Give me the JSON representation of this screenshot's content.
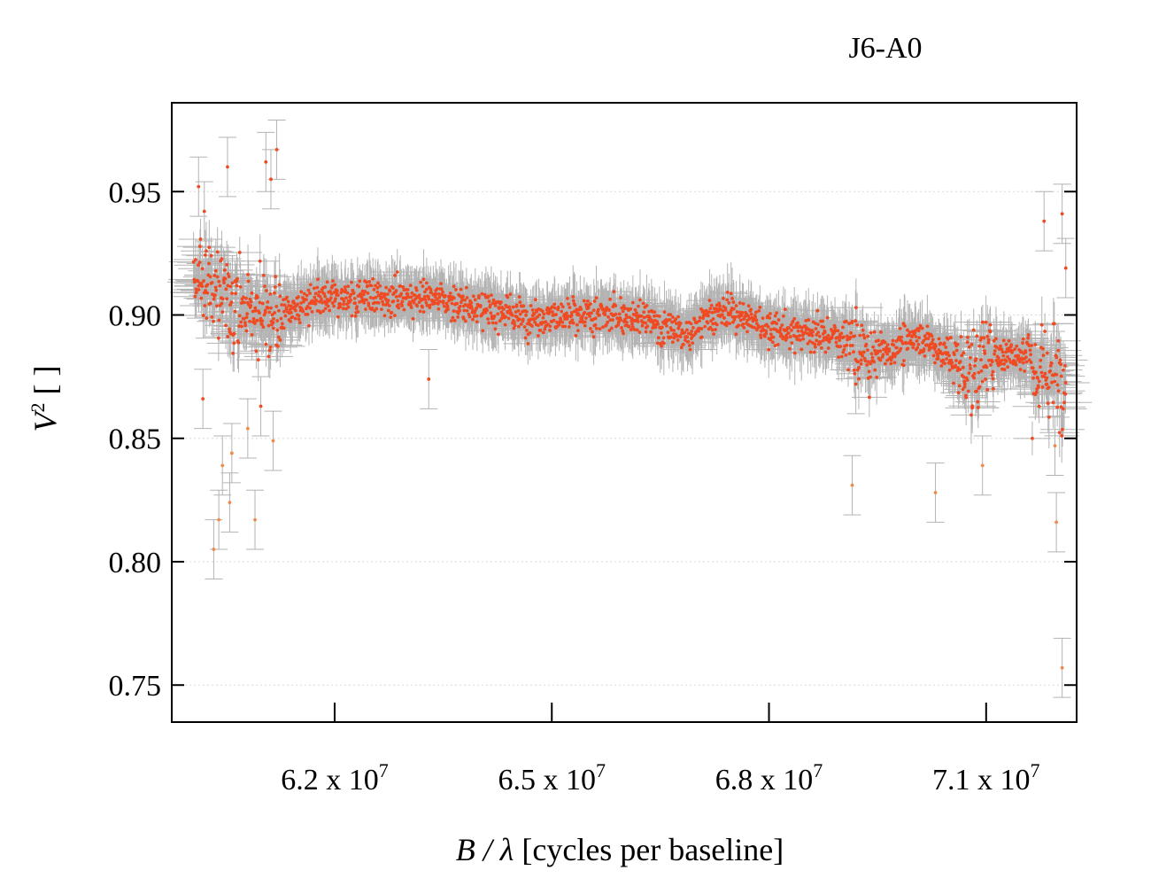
{
  "chart_data": {
    "type": "scatter",
    "title": "J6-A0",
    "xlabel_var": "B / λ",
    "xlabel_rest": " [cycles per baseline]",
    "ylabel_var": "V",
    "ylabel_sup": "2",
    "ylabel_rest": " [ ]",
    "xlim": [
      59750000,
      72250000
    ],
    "ylim": [
      0.735,
      0.986
    ],
    "x_ticks": [
      62000000,
      65000000,
      68000000,
      71000000
    ],
    "x_tick_labels": [
      {
        "mant": "6.2 x 10",
        "exp": "7"
      },
      {
        "mant": "6.5 x 10",
        "exp": "7"
      },
      {
        "mant": "6.8 x 10",
        "exp": "7"
      },
      {
        "mant": "7.1 x 10",
        "exp": "7"
      }
    ],
    "y_ticks": [
      0.75,
      0.8,
      0.85,
      0.9,
      0.95
    ],
    "y_tick_labels": [
      "0.75",
      "0.80",
      "0.85",
      "0.90",
      "0.95"
    ],
    "grid": "horizontal dotted",
    "colors": {
      "points": "#f04a23",
      "outliers": "#f08a4a",
      "errorbars": "#b3b3b3",
      "grid": "#d8d8d8"
    },
    "trend": [
      [
        60050000,
        0.916
      ],
      [
        60300000,
        0.912
      ],
      [
        60600000,
        0.905
      ],
      [
        60900000,
        0.902
      ],
      [
        61200000,
        0.9
      ],
      [
        61600000,
        0.904
      ],
      [
        62000000,
        0.907
      ],
      [
        62500000,
        0.907
      ],
      [
        63000000,
        0.908
      ],
      [
        63500000,
        0.906
      ],
      [
        64000000,
        0.903
      ],
      [
        64500000,
        0.9
      ],
      [
        65000000,
        0.899
      ],
      [
        65500000,
        0.899
      ],
      [
        66000000,
        0.9
      ],
      [
        66500000,
        0.896
      ],
      [
        66900000,
        0.891
      ],
      [
        67100000,
        0.9
      ],
      [
        67500000,
        0.901
      ],
      [
        68000000,
        0.895
      ],
      [
        68500000,
        0.893
      ],
      [
        68800000,
        0.892
      ],
      [
        69100000,
        0.888
      ],
      [
        69400000,
        0.882
      ],
      [
        69800000,
        0.888
      ],
      [
        70100000,
        0.891
      ],
      [
        70400000,
        0.885
      ],
      [
        70800000,
        0.874
      ],
      [
        71000000,
        0.884
      ],
      [
        71400000,
        0.884
      ],
      [
        71600000,
        0.885
      ],
      [
        71700000,
        0.874
      ],
      [
        72000000,
        0.878
      ]
    ],
    "outliers": [
      [
        60120000,
        0.952
      ],
      [
        60180000,
        0.866
      ],
      [
        60200000,
        0.942
      ],
      [
        60330000,
        0.805
      ],
      [
        60400000,
        0.817
      ],
      [
        60450000,
        0.839
      ],
      [
        60520000,
        0.96
      ],
      [
        60550000,
        0.824
      ],
      [
        60580000,
        0.844
      ],
      [
        60800000,
        0.854
      ],
      [
        60900000,
        0.817
      ],
      [
        60980000,
        0.863
      ],
      [
        61050000,
        0.962
      ],
      [
        61120000,
        0.955
      ],
      [
        61150000,
        0.849
      ],
      [
        61200000,
        0.967
      ],
      [
        63300000,
        0.874
      ],
      [
        69150000,
        0.831
      ],
      [
        69200000,
        0.872
      ],
      [
        70300000,
        0.828
      ],
      [
        70950000,
        0.839
      ],
      [
        71800000,
        0.938
      ],
      [
        71950000,
        0.847
      ],
      [
        71970000,
        0.816
      ],
      [
        72050000,
        0.941
      ],
      [
        72050000,
        0.757
      ],
      [
        72100000,
        0.919
      ]
    ]
  }
}
